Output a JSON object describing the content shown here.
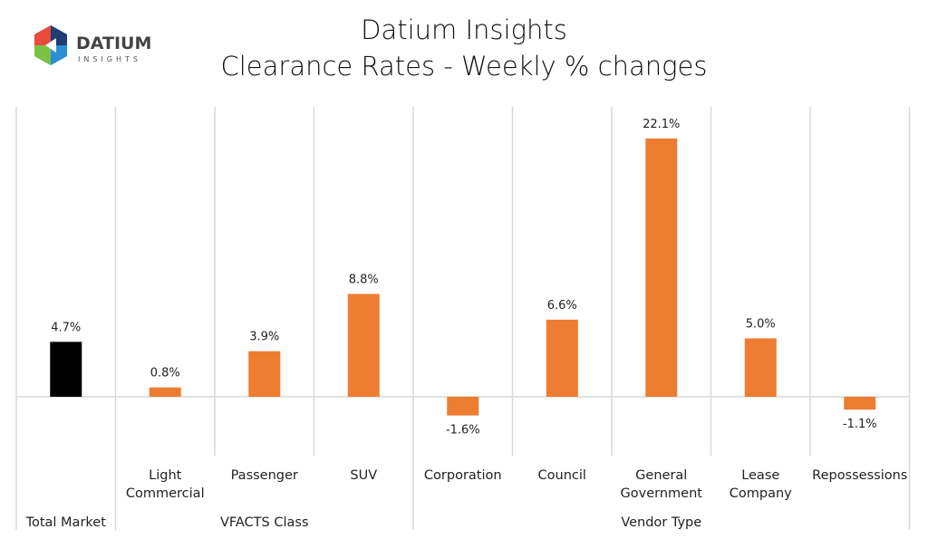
{
  "logo": {
    "text": "DATIUM",
    "subtext": "INSIGHTS"
  },
  "chart_data": {
    "type": "bar",
    "title": "Datium Insights",
    "subtitle": "Clearance Rates - Weekly % changes",
    "categories": [
      "Total Market",
      "Light Commercial",
      "Passenger",
      "SUV",
      "Corporation",
      "Council",
      "General Government",
      "Lease Company",
      "Repossessions"
    ],
    "category_lines": [
      [
        "Total Market"
      ],
      [
        "Light",
        "Commercial"
      ],
      [
        "Passenger"
      ],
      [
        "SUV"
      ],
      [
        "Corporation"
      ],
      [
        "Council"
      ],
      [
        "General",
        "Government"
      ],
      [
        "Lease",
        "Company"
      ],
      [
        "Repossessions"
      ]
    ],
    "groups": [
      {
        "label": "",
        "span": 1
      },
      {
        "label": "VFACTS Class",
        "span": 3
      },
      {
        "label": "Vendor Type",
        "span": 5
      }
    ],
    "values": [
      4.7,
      0.8,
      3.9,
      8.8,
      -1.6,
      6.6,
      22.1,
      5.0,
      -1.1
    ],
    "data_labels": [
      "4.7%",
      "0.8%",
      "3.9%",
      "8.8%",
      "-1.6%",
      "6.6%",
      "22.1%",
      "5.0%",
      "-1.1%"
    ],
    "colors": [
      "#000000",
      "#ED7D31",
      "#ED7D31",
      "#ED7D31",
      "#ED7D31",
      "#ED7D31",
      "#ED7D31",
      "#ED7D31",
      "#ED7D31"
    ],
    "ylim": [
      -4.2,
      25
    ],
    "grid": false,
    "legend": "none"
  }
}
